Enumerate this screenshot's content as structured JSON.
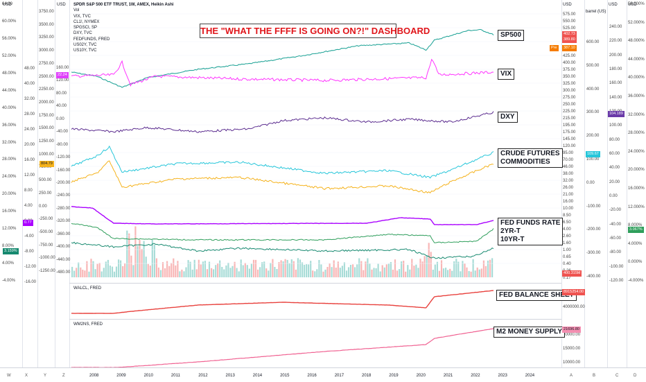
{
  "header": {
    "instrument_line": "SPDR S&P 500 ETF TRUST, 1W, AMEX, Heikin Ashi",
    "col1_unit": "USD",
    "col2_unit": "USD",
    "right_unit_a": "USD",
    "right_unit_b": "barrel (US)",
    "right_unit_c": "USD",
    "right_unit_d": "USD"
  },
  "legend": [
    "Vol",
    "VIX, TVC",
    "CL1!, NYMEX",
    "SPGSCI, SP",
    "DXY, TVC",
    "FEDFUNDS, FRED",
    "US02Y, TVC",
    "US10Y, TVC"
  ],
  "title": "THE \"WHAT THE FFFF IS GOING ON?!\" DASHBOARD",
  "panel_labels": {
    "sp500": "SP500",
    "vix": "VIX",
    "dxy": "DXY",
    "crude1": "CRUDE FUTURES",
    "crude2": "COMMODITIES",
    "fed1": "FED FUNDS RATE",
    "fed2": "2YR-T",
    "fed3": "10YR-T",
    "balance": "FED BALANCE SHEET",
    "m2": "M2 MONEY SUPPLY"
  },
  "pane_titles": {
    "walcl": "WALCL, FRED",
    "wm2ns": "WM2NS, FRED"
  },
  "price_tags": {
    "spy_a": "402.73",
    "spy_b": "389.80",
    "spy_c": "387.10",
    "spy_pre": "Pre",
    "vix_left": "22.24",
    "dxy_right": "104.189",
    "crude_right": "109.67",
    "crude_left": "804.79",
    "fed_left": "0.77",
    "fed_left2": "3.159%",
    "fed_right": "3.067%",
    "vol_tag": "400.315M",
    "walcl_tag": "8915254.00",
    "m2_tag": "21696.80"
  },
  "axis_col1": [
    "64.00",
    "60.00%",
    "56.00%",
    "52.00%",
    "48.00%",
    "44.00%",
    "40.00%",
    "36.00%",
    "32.00%",
    "28.00%",
    "24.00%",
    "20.00%",
    "16.00%",
    "12.00%",
    "8.00%",
    "4.00%",
    "-4.00%"
  ],
  "axis_col2": [
    "3750.00",
    "3500.00",
    "3250.00",
    "3000.00",
    "2750.00",
    "2500.00",
    "2250.00",
    "2000.00",
    "1750.00",
    "1500.00",
    "1250.00",
    "1000.00",
    "750.00",
    "500.00",
    "250.00",
    "0.00",
    "-250.00",
    "-500.00",
    "-750.00",
    "-1000.00",
    "-1250.00"
  ],
  "axis_col3": [
    "48.00",
    "40.00",
    "32.00",
    "28.00",
    "24.00",
    "20.00",
    "16.00",
    "12.00",
    "8.00",
    "4.00",
    "0.00",
    "-4.00",
    "-8.00",
    "-12.00",
    "-16.00"
  ],
  "axis_col4": [
    "160.00",
    "120.00",
    "80.00",
    "40.00",
    "0.00",
    "-40.00",
    "-80.00",
    "-120.00",
    "-160.00",
    "-200.00",
    "-240.00",
    "-280.00",
    "-320.00",
    "-360.00",
    "-400.00",
    "-440.00",
    "-480.00"
  ],
  "axis_r1": [
    "575.00",
    "550.00",
    "525.00",
    "500.00",
    "475.00",
    "450.00",
    "425.00",
    "400.00",
    "375.00",
    "350.00",
    "325.00",
    "300.00",
    "275.00",
    "250.00",
    "225.00",
    "215.00",
    "195.00",
    "175.00",
    "145.00",
    "120.00",
    "95.00",
    "70.00",
    "46.00",
    "38.00",
    "32.00",
    "26.00",
    "21.00",
    "16.00",
    "10.00",
    "8.50",
    "6.50",
    "4.00",
    "2.60",
    "1.60",
    "1.00",
    "0.65",
    "0.40",
    "0.26",
    "0.17"
  ],
  "axis_r2": [
    "600.00",
    "500.00",
    "400.00",
    "300.00",
    "200.00",
    "100.00",
    "0.00",
    "-100.00",
    "-200.00",
    "-300.00",
    "-400.00"
  ],
  "axis_r3": [
    "240.00",
    "220.00",
    "200.00",
    "180.00",
    "160.00",
    "140.00",
    "120.00",
    "100.00",
    "80.00",
    "60.00",
    "40.00",
    "20.00",
    "0.00",
    "-20.00",
    "-40.00",
    "-60.00",
    "-80.00",
    "-100.00",
    "-120.00"
  ],
  "axis_r4": [
    "56.000%",
    "52.000%",
    "48.000%",
    "44.000%",
    "40.000%",
    "36.000%",
    "32.000%",
    "28.000%",
    "24.000%",
    "20.000%",
    "16.000%",
    "12.000%",
    "8.000%",
    "4.000%",
    "0.000%",
    "-4.000%"
  ],
  "axis_bal": [
    "4000000.00"
  ],
  "axis_m2": [
    "20000.00",
    "15000.00",
    "10000.00"
  ],
  "x_axis_years": [
    "2008",
    "2009",
    "2010",
    "2011",
    "2012",
    "2013",
    "2014",
    "2015",
    "2016",
    "2017",
    "2018",
    "2019",
    "2020",
    "2021",
    "2022",
    "2023",
    "2024"
  ],
  "x_axis_tools": [
    "W",
    "X",
    "Y",
    "Z",
    "A",
    "B",
    "C",
    "D"
  ],
  "colors": {
    "spy": "#26a69a",
    "vix": "#ff33ff",
    "dxy": "#5b2c8f",
    "crude": "#26c6da",
    "commod": "#f5b21b",
    "fedfunds": "#aa00ff",
    "us02y": "#2e9e5b",
    "us10y": "#16896f",
    "balance": "#e8403c",
    "m2": "#f06292",
    "vol_up": "#a8dcd7",
    "vol_down": "#f8b6b6"
  }
}
